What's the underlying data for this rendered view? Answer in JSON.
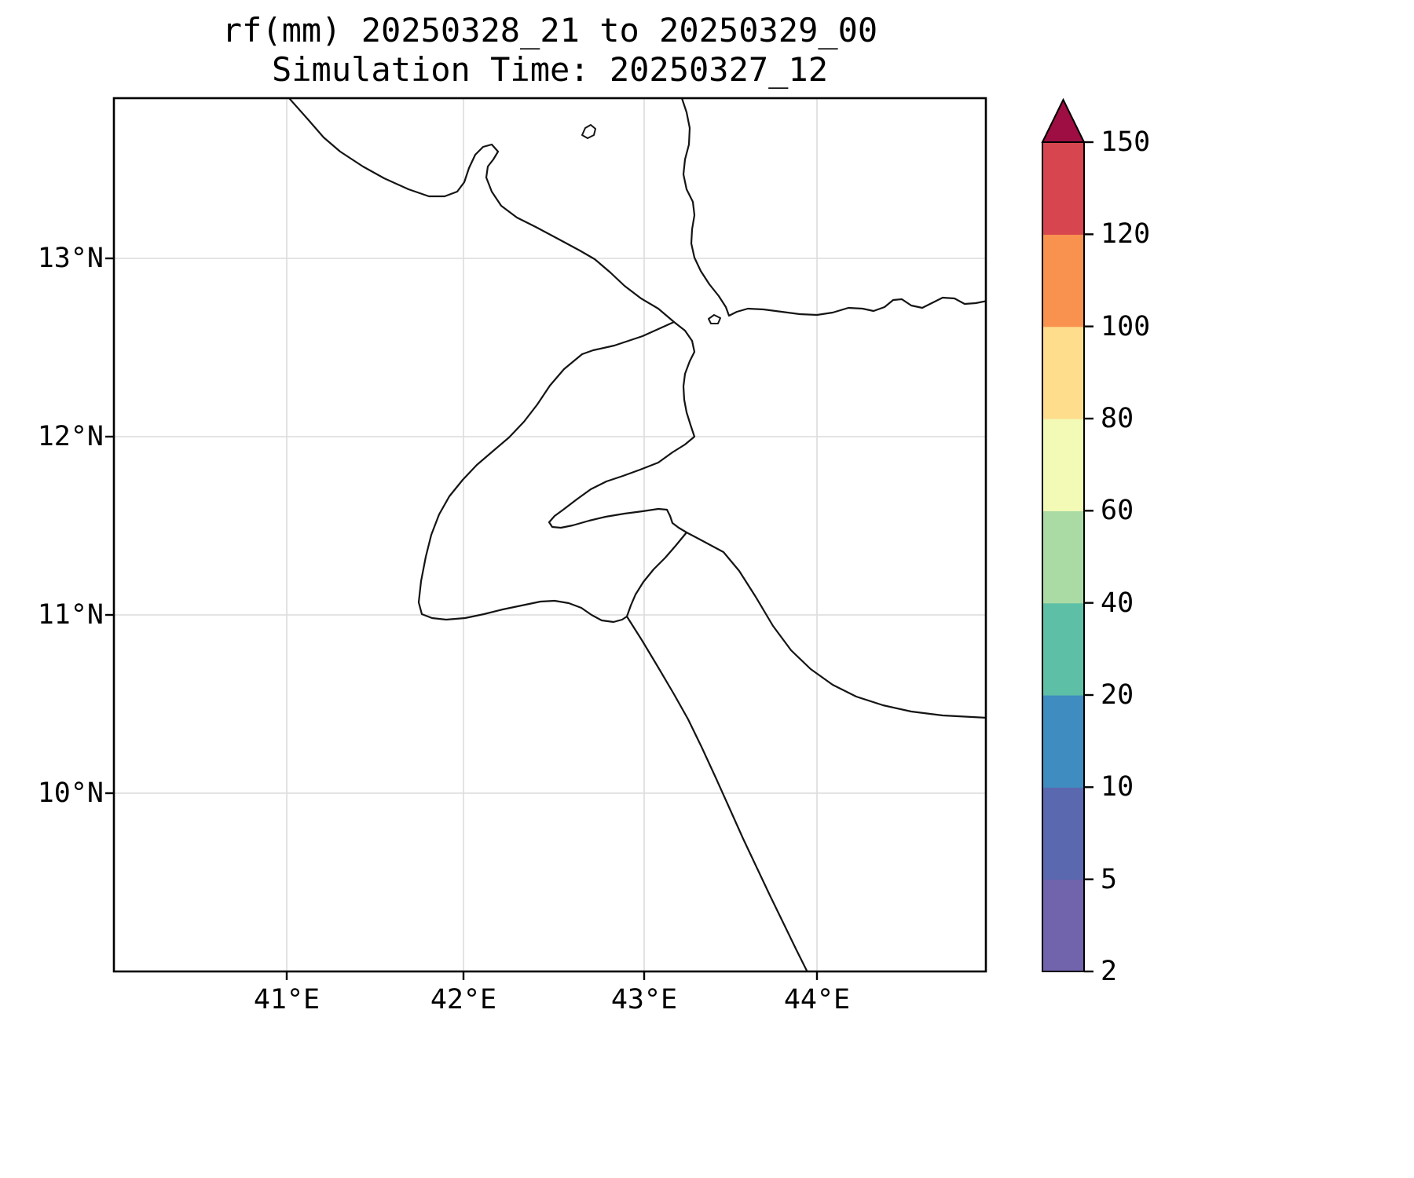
{
  "title": {
    "line1": "rf(mm) 20250328_21 to 20250329_00",
    "line2": "Simulation Time: 20250327_12"
  },
  "axes": {
    "x_tick_labels": [
      "41°E",
      "42°E",
      "43°E",
      "44°E"
    ],
    "y_tick_labels": [
      "13°N",
      "12°N",
      "11°N",
      "10°N"
    ]
  },
  "colorbar": {
    "tick_labels_top_to_bottom": [
      "150",
      "120",
      "100",
      "80",
      "60",
      "40",
      "20",
      "10",
      "5",
      "2"
    ],
    "segment_colors_bottom_to_top": [
      "#7163ac",
      "#5a68b0",
      "#3e8cc0",
      "#5cbfa6",
      "#abdba4",
      "#f2fab6",
      "#fedd8d",
      "#f9914f",
      "#d7464e"
    ],
    "over_color": "#9e0e42",
    "outline_color": "#000000"
  },
  "chart_data": {
    "type": "map",
    "title": "rf(mm) 20250328_21 to 20250329_00",
    "subtitle": "Simulation Time: 20250327_12",
    "variable": "rainfall accumulation (mm)",
    "accumulation_period": "20250328_21 to 20250329_00",
    "simulation_time": "20250327_12",
    "lon_ticks_deg_e": [
      41,
      42,
      43,
      44
    ],
    "lat_ticks_deg_n": [
      13,
      12,
      11,
      10
    ],
    "lon_range_deg_e": [
      40.0,
      45.0
    ],
    "lat_range_deg_n": [
      9.0,
      13.9
    ],
    "colorbar_levels_mm": [
      2,
      5,
      10,
      20,
      40,
      60,
      80,
      100,
      120,
      150
    ],
    "colorbar_extend": "max",
    "shaded_rainfall": "no shaded values visible in domain (all below 2 mm)",
    "grid": "on",
    "legend_position": "right colorbar"
  }
}
